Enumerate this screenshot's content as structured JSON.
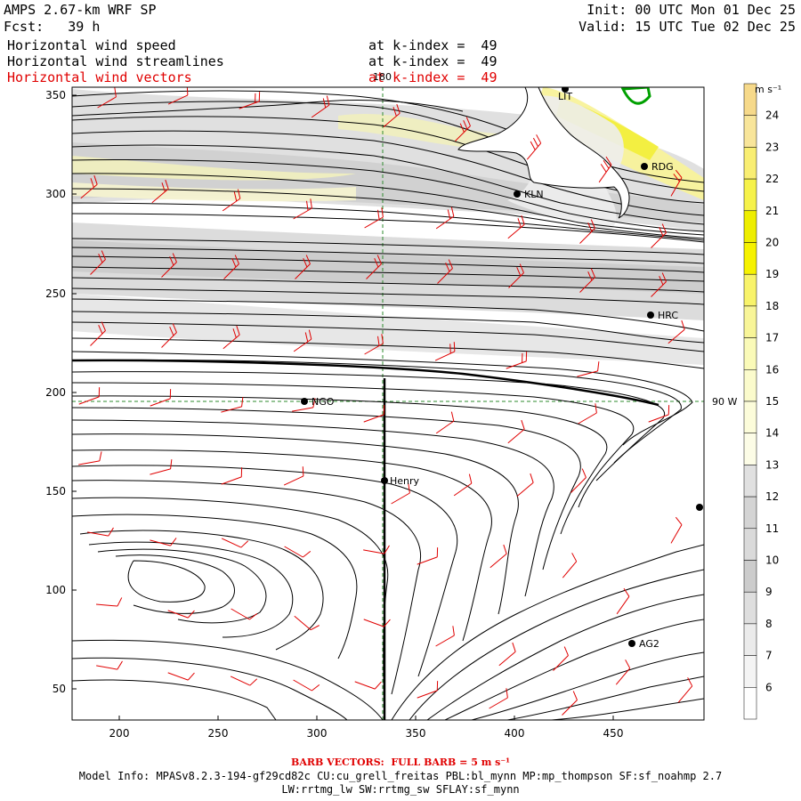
{
  "header": {
    "model_title": "AMPS 2.67-km WRF SP",
    "forecast": "Fcst:   39 h",
    "init": "Init: 00 UTC Mon 01 Dec 25",
    "valid": "Valid: 15 UTC Tue 02 Dec 25"
  },
  "fields": [
    {
      "label": "Horizontal wind speed",
      "level": "at k-index =  49",
      "color": "#000000"
    },
    {
      "label": "Horizontal wind streamlines",
      "level": "at k-index =  49",
      "color": "#000000"
    },
    {
      "label": "Horizontal wind vectors",
      "level": "at k-index =  49",
      "color": "#e00000"
    }
  ],
  "map": {
    "x_ticks": [
      "200",
      "250",
      "300",
      "350",
      "400",
      "450"
    ],
    "y_ticks": [
      "350",
      "300",
      "250",
      "200",
      "150",
      "100",
      "50"
    ],
    "meridian_label": "180",
    "parallel_label": "90 W",
    "stations": [
      {
        "name": "LIT",
        "show_label": true
      },
      {
        "name": "RDG",
        "show_label": true
      },
      {
        "name": "KLN",
        "show_label": true
      },
      {
        "name": "HRC",
        "show_label": true
      },
      {
        "name": "NGO",
        "show_label": true
      },
      {
        "name": "Henry",
        "show_label": true
      },
      {
        "name": "AG2",
        "show_label": true
      }
    ]
  },
  "colorbar": {
    "units": "m s⁻¹",
    "labels": [
      "24",
      "23",
      "22",
      "21",
      "20",
      "19",
      "18",
      "17",
      "16",
      "15",
      "14",
      "13",
      "12",
      "11",
      "10",
      "9",
      "8",
      "7",
      "6"
    ],
    "colors": [
      "#f6d98a",
      "#f8e59a",
      "#f9ee72",
      "#f6f24a",
      "#eeee00",
      "#f6f200",
      "#f8f36a",
      "#f8f598",
      "#fafab8",
      "#fbfbcc",
      "#fcfcda",
      "#fcfce6",
      "#e0e0e0",
      "#d4d4d4",
      "#dadada",
      "#cccccc",
      "#dedede",
      "#ebebeb",
      "#f4f4f4",
      "#ffffff"
    ]
  },
  "footer": {
    "barb_text": "BARB VECTORS:  FULL BARB = 5 m s⁻¹",
    "model_info": "Model Info: MPASv8.2.3-194-gf29cd82c CU:cu_grell_freitas PBL:bl_mynn MP:mp_thompson SF:sf_noahmp 2.7",
    "physics": "LW:rrtmg_lw SW:rrtmg_sw SFLAY:sf_mynn"
  }
}
